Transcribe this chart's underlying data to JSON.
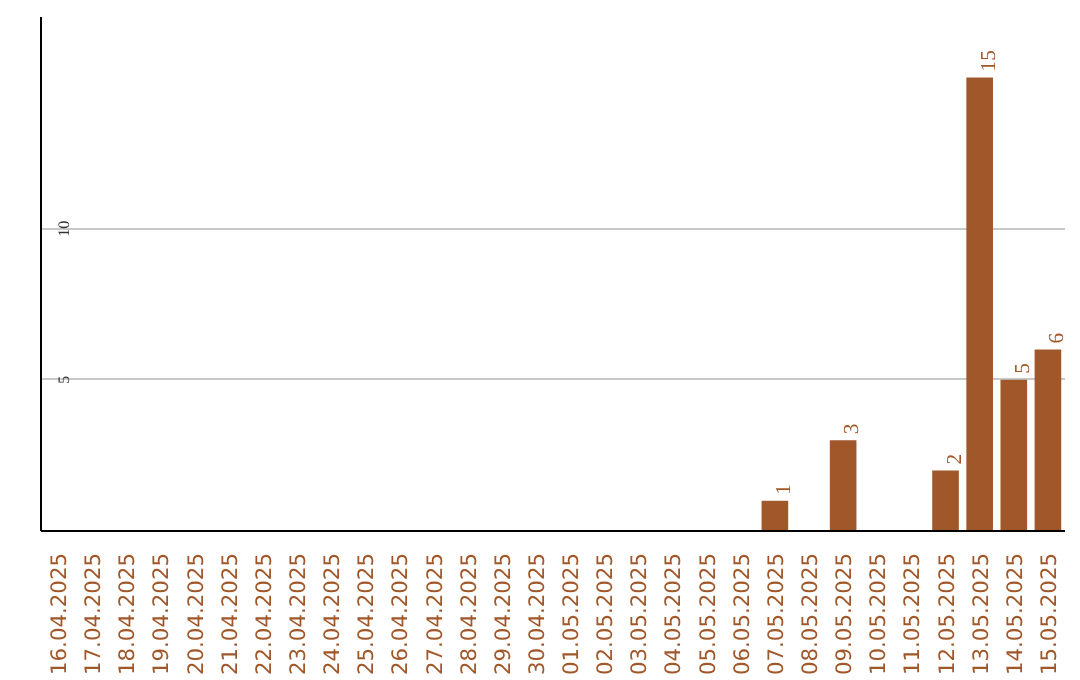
{
  "chart_data": {
    "type": "bar",
    "categories": [
      "16.04.2025",
      "17.04.2025",
      "18.04.2025",
      "19.04.2025",
      "20.04.2025",
      "21.04.2025",
      "22.04.2025",
      "23.04.2025",
      "24.04.2025",
      "25.04.2025",
      "26.04.2025",
      "27.04.2025",
      "28.04.2025",
      "29.04.2025",
      "30.04.2025",
      "01.05.2025",
      "02.05.2025",
      "03.05.2025",
      "04.05.2025",
      "05.05.2025",
      "06.05.2025",
      "07.05.2025",
      "08.05.2025",
      "09.05.2025",
      "10.05.2025",
      "11.05.2025",
      "12.05.2025",
      "13.05.2025",
      "14.05.2025",
      "15.05.2025"
    ],
    "values": [
      0,
      0,
      0,
      0,
      0,
      0,
      0,
      0,
      0,
      0,
      0,
      0,
      0,
      0,
      0,
      0,
      0,
      0,
      0,
      0,
      0,
      1,
      0,
      3,
      0,
      0,
      2,
      15,
      5,
      6
    ],
    "value_labels": [
      null,
      null,
      null,
      null,
      null,
      null,
      null,
      null,
      null,
      null,
      null,
      null,
      null,
      null,
      null,
      null,
      null,
      null,
      null,
      null,
      null,
      "1",
      null,
      "3",
      null,
      null,
      "2",
      "15",
      "5",
      "6"
    ],
    "color": "#a0582a",
    "ylim": [
      0,
      17
    ],
    "yticks": [
      5,
      10
    ],
    "grid": "y"
  }
}
